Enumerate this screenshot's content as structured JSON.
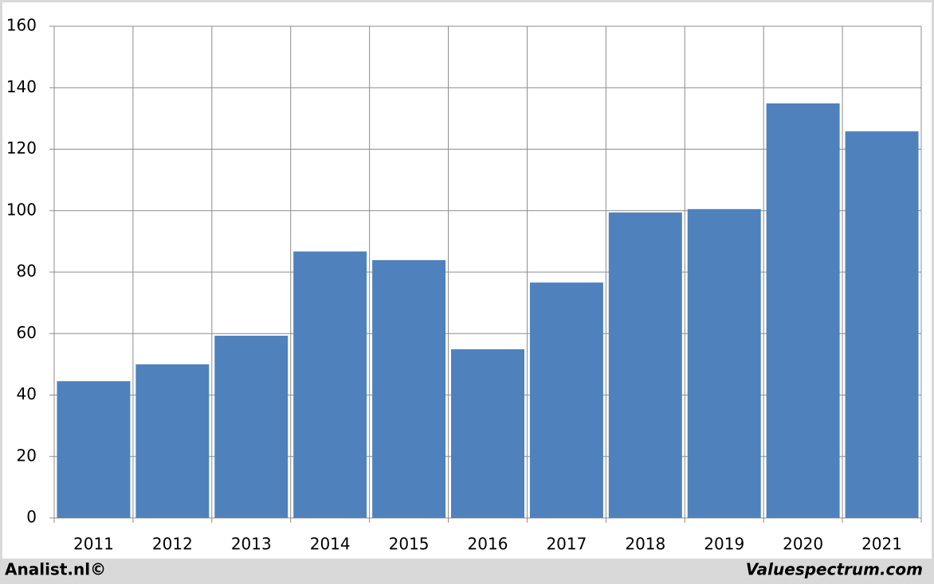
{
  "chart_data": {
    "type": "bar",
    "categories": [
      "2011",
      "2012",
      "2013",
      "2014",
      "2015",
      "2016",
      "2017",
      "2018",
      "2019",
      "2020",
      "2021"
    ],
    "values": [
      44.5,
      50,
      59.3,
      86.7,
      83.9,
      54.9,
      76.6,
      99.4,
      100.5,
      134.9,
      125.8
    ],
    "color": "#4f81bd",
    "ylim": [
      0,
      160
    ],
    "yticks": [
      0,
      20,
      40,
      60,
      80,
      100,
      120,
      140,
      160
    ],
    "grid": true,
    "credits": [
      "Analist.nl©",
      "Valuespectrum.com"
    ]
  }
}
